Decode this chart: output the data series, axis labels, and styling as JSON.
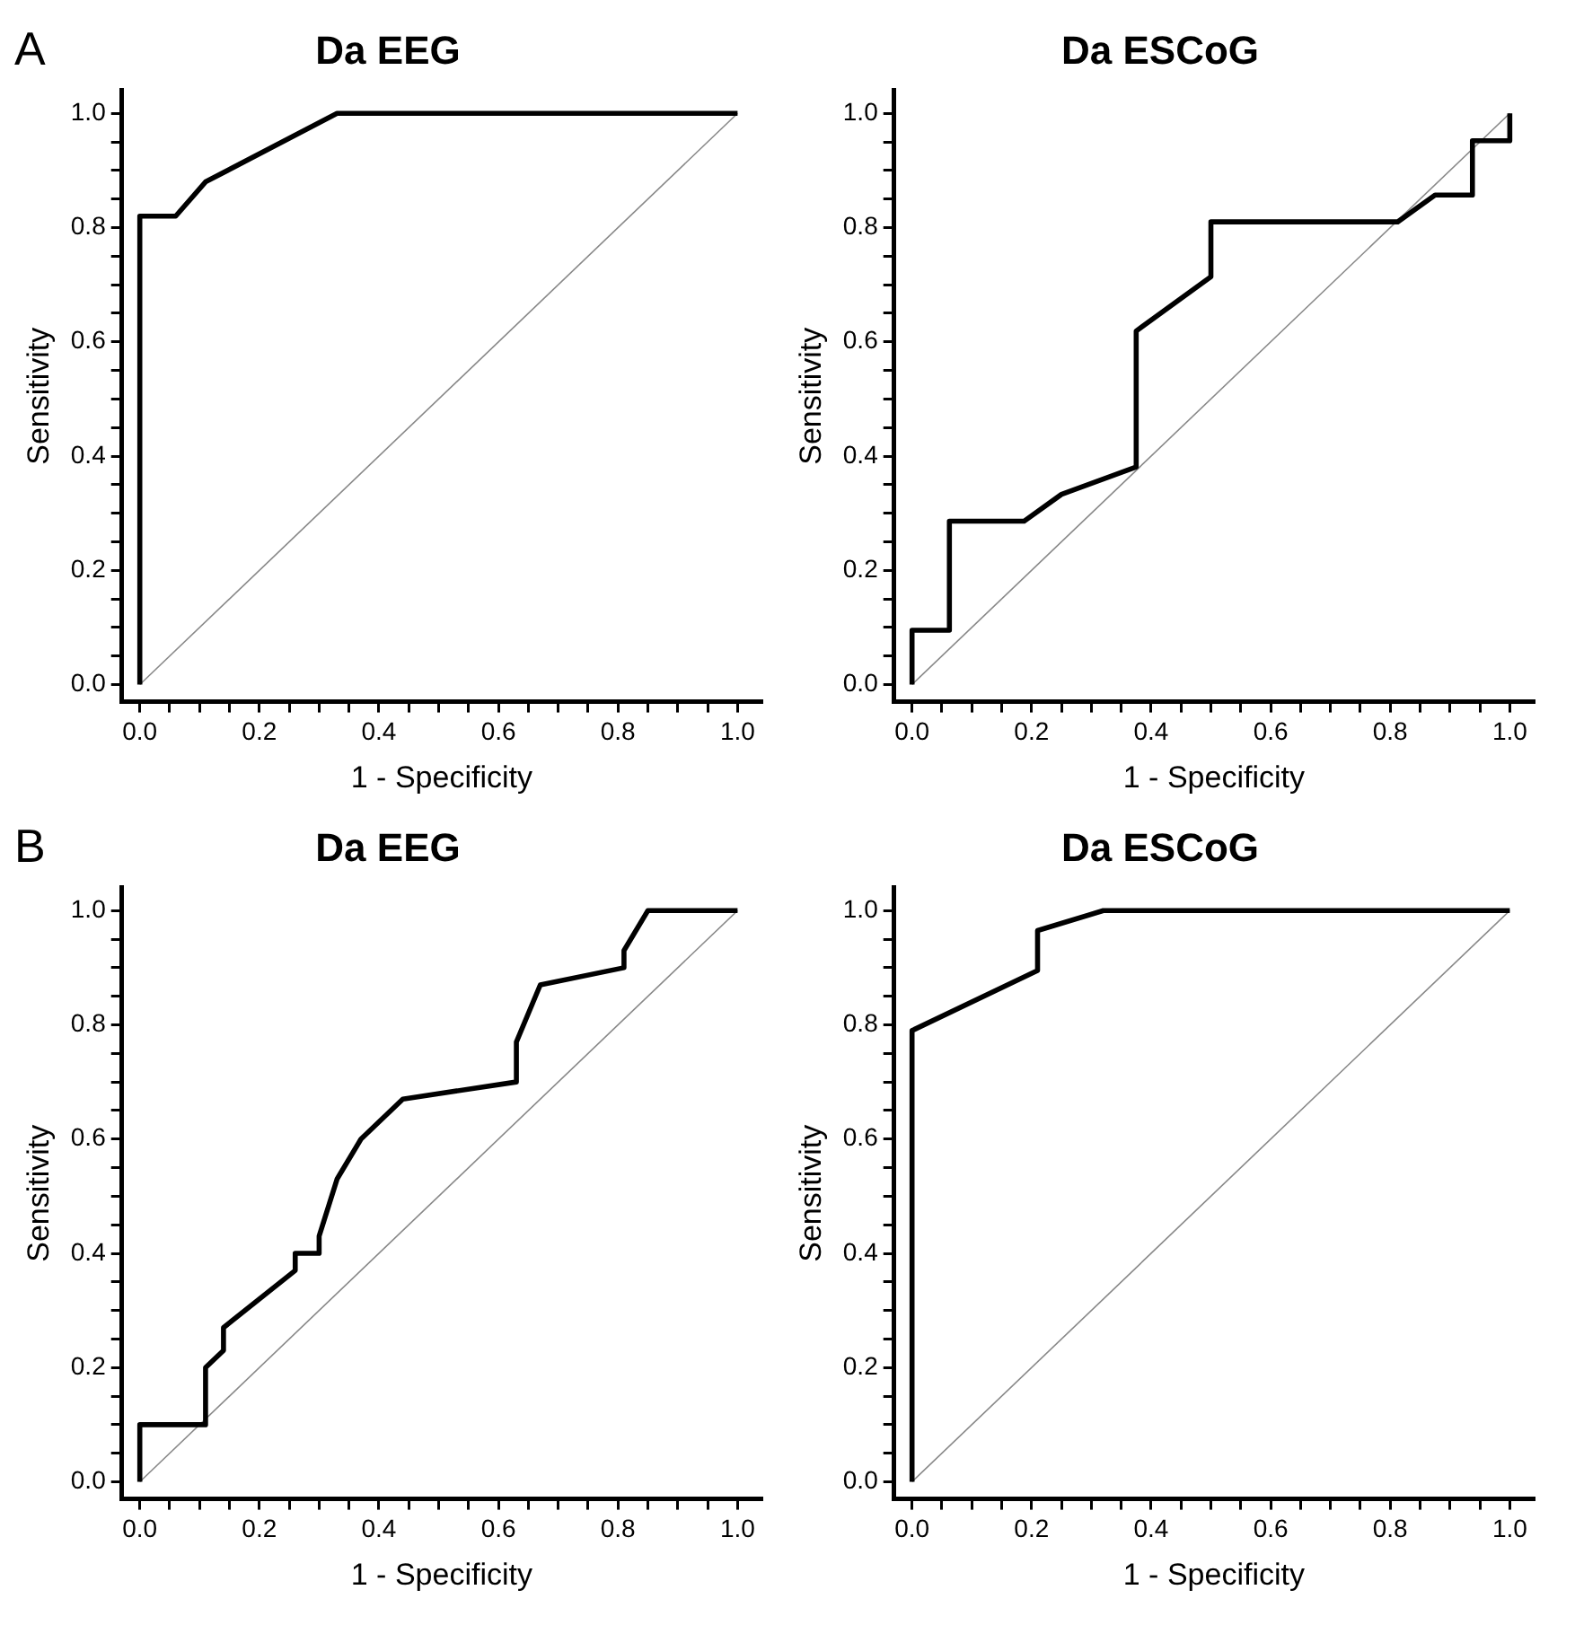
{
  "chart_data": [
    {
      "type": "line",
      "title": "Da EEG",
      "xlabel": "1 - Specificity",
      "ylabel": "Sensitivity",
      "annotations": [
        "A"
      ],
      "marker": "none",
      "grid": false,
      "legend": false,
      "xlim": [
        -0.03,
        1.04
      ],
      "ylim": [
        -0.03,
        1.04
      ],
      "xticks": [
        {
          "value": 0,
          "label": "0.0"
        },
        {
          "value": 0.05,
          "label": null
        },
        {
          "value": 0.1,
          "label": null
        },
        {
          "value": 0.15,
          "label": null
        },
        {
          "value": 0.2,
          "label": "0.2"
        },
        {
          "value": 0.25,
          "label": null
        },
        {
          "value": 0.3,
          "label": null
        },
        {
          "value": 0.35,
          "label": null
        },
        {
          "value": 0.4,
          "label": "0.4"
        },
        {
          "value": 0.45,
          "label": null
        },
        {
          "value": 0.5,
          "label": null
        },
        {
          "value": 0.55,
          "label": null
        },
        {
          "value": 0.6,
          "label": "0.6"
        },
        {
          "value": 0.65,
          "label": null
        },
        {
          "value": 0.7,
          "label": null
        },
        {
          "value": 0.75,
          "label": null
        },
        {
          "value": 0.8,
          "label": "0.8"
        },
        {
          "value": 0.85,
          "label": null
        },
        {
          "value": 0.9,
          "label": null
        },
        {
          "value": 0.95,
          "label": null
        },
        {
          "value": 1,
          "label": "1.0"
        }
      ],
      "yticks": [
        {
          "value": 0,
          "label": "0.0"
        },
        {
          "value": 0.05,
          "label": null
        },
        {
          "value": 0.1,
          "label": null
        },
        {
          "value": 0.15,
          "label": null
        },
        {
          "value": 0.2,
          "label": "0.2"
        },
        {
          "value": 0.25,
          "label": null
        },
        {
          "value": 0.3,
          "label": null
        },
        {
          "value": 0.35,
          "label": null
        },
        {
          "value": 0.4,
          "label": "0.4"
        },
        {
          "value": 0.45,
          "label": null
        },
        {
          "value": 0.5,
          "label": null
        },
        {
          "value": 0.55,
          "label": null
        },
        {
          "value": 0.6,
          "label": "0.6"
        },
        {
          "value": 0.65,
          "label": null
        },
        {
          "value": 0.7,
          "label": null
        },
        {
          "value": 0.75,
          "label": null
        },
        {
          "value": 0.8,
          "label": "0.8"
        },
        {
          "value": 0.85,
          "label": null
        },
        {
          "value": 0.9,
          "label": null
        },
        {
          "value": 0.95,
          "label": null
        },
        {
          "value": 1,
          "label": "1.0"
        }
      ],
      "series": [
        {
          "color": "#000000",
          "x": [
            0,
            0,
            0.06,
            0.11,
            0.33,
            1
          ],
          "values": [
            0,
            0.82,
            0.82,
            0.88,
            1,
            1
          ]
        },
        {
          "color": "#888888",
          "x": [
            0,
            1
          ],
          "values": [
            0,
            1
          ]
        }
      ]
    },
    {
      "type": "line",
      "title": "Da ESCoG",
      "xlabel": "1 - Specificity",
      "ylabel": "Sensitivity",
      "marker": "none",
      "grid": false,
      "legend": false,
      "xlim": [
        -0.03,
        1.04
      ],
      "ylim": [
        -0.03,
        1.04
      ],
      "xticks": [
        {
          "value": 0,
          "label": "0.0"
        },
        {
          "value": 0.05,
          "label": null
        },
        {
          "value": 0.1,
          "label": null
        },
        {
          "value": 0.15,
          "label": null
        },
        {
          "value": 0.2,
          "label": "0.2"
        },
        {
          "value": 0.25,
          "label": null
        },
        {
          "value": 0.3,
          "label": null
        },
        {
          "value": 0.35,
          "label": null
        },
        {
          "value": 0.4,
          "label": "0.4"
        },
        {
          "value": 0.45,
          "label": null
        },
        {
          "value": 0.5,
          "label": null
        },
        {
          "value": 0.55,
          "label": null
        },
        {
          "value": 0.6,
          "label": "0.6"
        },
        {
          "value": 0.65,
          "label": null
        },
        {
          "value": 0.7,
          "label": null
        },
        {
          "value": 0.75,
          "label": null
        },
        {
          "value": 0.8,
          "label": "0.8"
        },
        {
          "value": 0.85,
          "label": null
        },
        {
          "value": 0.9,
          "label": null
        },
        {
          "value": 0.95,
          "label": null
        },
        {
          "value": 1,
          "label": "1.0"
        }
      ],
      "yticks": [
        {
          "value": 0,
          "label": "0.0"
        },
        {
          "value": 0.05,
          "label": null
        },
        {
          "value": 0.1,
          "label": null
        },
        {
          "value": 0.15,
          "label": null
        },
        {
          "value": 0.2,
          "label": "0.2"
        },
        {
          "value": 0.25,
          "label": null
        },
        {
          "value": 0.3,
          "label": null
        },
        {
          "value": 0.35,
          "label": null
        },
        {
          "value": 0.4,
          "label": "0.4"
        },
        {
          "value": 0.45,
          "label": null
        },
        {
          "value": 0.5,
          "label": null
        },
        {
          "value": 0.55,
          "label": null
        },
        {
          "value": 0.6,
          "label": "0.6"
        },
        {
          "value": 0.65,
          "label": null
        },
        {
          "value": 0.7,
          "label": null
        },
        {
          "value": 0.75,
          "label": null
        },
        {
          "value": 0.8,
          "label": "0.8"
        },
        {
          "value": 0.85,
          "label": null
        },
        {
          "value": 0.9,
          "label": null
        },
        {
          "value": 0.95,
          "label": null
        },
        {
          "value": 1,
          "label": "1.0"
        }
      ],
      "series": [
        {
          "color": "#000000",
          "x": [
            0,
            0,
            0.0625,
            0.0625,
            0.1875,
            0.25,
            0.375,
            0.375,
            0.5,
            0.5,
            0.8125,
            0.875,
            0.9375,
            0.9375,
            1,
            1
          ],
          "values": [
            0,
            0.095,
            0.095,
            0.286,
            0.286,
            0.333,
            0.381,
            0.619,
            0.714,
            0.81,
            0.81,
            0.857,
            0.857,
            0.952,
            0.952,
            1
          ]
        },
        {
          "color": "#888888",
          "x": [
            0,
            1
          ],
          "values": [
            0,
            1
          ]
        }
      ]
    },
    {
      "type": "line",
      "title": "Da EEG",
      "xlabel": "1 - Specificity",
      "ylabel": "Sensitivity",
      "annotations": [
        "B"
      ],
      "marker": "none",
      "grid": false,
      "legend": false,
      "xlim": [
        -0.03,
        1.04
      ],
      "ylim": [
        -0.03,
        1.04
      ],
      "xticks": [
        {
          "value": 0,
          "label": "0.0"
        },
        {
          "value": 0.05,
          "label": null
        },
        {
          "value": 0.1,
          "label": null
        },
        {
          "value": 0.15,
          "label": null
        },
        {
          "value": 0.2,
          "label": "0.2"
        },
        {
          "value": 0.25,
          "label": null
        },
        {
          "value": 0.3,
          "label": null
        },
        {
          "value": 0.35,
          "label": null
        },
        {
          "value": 0.4,
          "label": "0.4"
        },
        {
          "value": 0.45,
          "label": null
        },
        {
          "value": 0.5,
          "label": null
        },
        {
          "value": 0.55,
          "label": null
        },
        {
          "value": 0.6,
          "label": "0.6"
        },
        {
          "value": 0.65,
          "label": null
        },
        {
          "value": 0.7,
          "label": null
        },
        {
          "value": 0.75,
          "label": null
        },
        {
          "value": 0.8,
          "label": "0.8"
        },
        {
          "value": 0.85,
          "label": null
        },
        {
          "value": 0.9,
          "label": null
        },
        {
          "value": 0.95,
          "label": null
        },
        {
          "value": 1,
          "label": "1.0"
        }
      ],
      "yticks": [
        {
          "value": 0,
          "label": "0.0"
        },
        {
          "value": 0.05,
          "label": null
        },
        {
          "value": 0.1,
          "label": null
        },
        {
          "value": 0.15,
          "label": null
        },
        {
          "value": 0.2,
          "label": "0.2"
        },
        {
          "value": 0.25,
          "label": null
        },
        {
          "value": 0.3,
          "label": null
        },
        {
          "value": 0.35,
          "label": null
        },
        {
          "value": 0.4,
          "label": "0.4"
        },
        {
          "value": 0.45,
          "label": null
        },
        {
          "value": 0.5,
          "label": null
        },
        {
          "value": 0.55,
          "label": null
        },
        {
          "value": 0.6,
          "label": "0.6"
        },
        {
          "value": 0.65,
          "label": null
        },
        {
          "value": 0.7,
          "label": null
        },
        {
          "value": 0.75,
          "label": null
        },
        {
          "value": 0.8,
          "label": "0.8"
        },
        {
          "value": 0.85,
          "label": null
        },
        {
          "value": 0.9,
          "label": null
        },
        {
          "value": 0.95,
          "label": null
        },
        {
          "value": 1,
          "label": "1.0"
        }
      ],
      "series": [
        {
          "color": "#000000",
          "x": [
            0,
            0,
            0.11,
            0.11,
            0.14,
            0.14,
            0.26,
            0.26,
            0.3,
            0.3,
            0.33,
            0.37,
            0.44,
            0.63,
            0.63,
            0.67,
            0.81,
            0.81,
            0.85,
            1
          ],
          "values": [
            0,
            0.1,
            0.1,
            0.2,
            0.23,
            0.27,
            0.37,
            0.4,
            0.4,
            0.43,
            0.53,
            0.6,
            0.67,
            0.7,
            0.77,
            0.87,
            0.9,
            0.93,
            1,
            1
          ]
        },
        {
          "color": "#888888",
          "x": [
            0,
            1
          ],
          "values": [
            0,
            1
          ]
        }
      ]
    },
    {
      "type": "line",
      "title": "Da ESCoG",
      "xlabel": "1 - Specificity",
      "ylabel": "Sensitivity",
      "marker": "none",
      "grid": false,
      "legend": false,
      "xlim": [
        -0.03,
        1.04
      ],
      "ylim": [
        -0.03,
        1.04
      ],
      "xticks": [
        {
          "value": 0,
          "label": "0.0"
        },
        {
          "value": 0.05,
          "label": null
        },
        {
          "value": 0.1,
          "label": null
        },
        {
          "value": 0.15,
          "label": null
        },
        {
          "value": 0.2,
          "label": "0.2"
        },
        {
          "value": 0.25,
          "label": null
        },
        {
          "value": 0.3,
          "label": null
        },
        {
          "value": 0.35,
          "label": null
        },
        {
          "value": 0.4,
          "label": "0.4"
        },
        {
          "value": 0.45,
          "label": null
        },
        {
          "value": 0.5,
          "label": null
        },
        {
          "value": 0.55,
          "label": null
        },
        {
          "value": 0.6,
          "label": "0.6"
        },
        {
          "value": 0.65,
          "label": null
        },
        {
          "value": 0.7,
          "label": null
        },
        {
          "value": 0.75,
          "label": null
        },
        {
          "value": 0.8,
          "label": "0.8"
        },
        {
          "value": 0.85,
          "label": null
        },
        {
          "value": 0.9,
          "label": null
        },
        {
          "value": 0.95,
          "label": null
        },
        {
          "value": 1,
          "label": "1.0"
        }
      ],
      "yticks": [
        {
          "value": 0,
          "label": "0.0"
        },
        {
          "value": 0.05,
          "label": null
        },
        {
          "value": 0.1,
          "label": null
        },
        {
          "value": 0.15,
          "label": null
        },
        {
          "value": 0.2,
          "label": "0.2"
        },
        {
          "value": 0.25,
          "label": null
        },
        {
          "value": 0.3,
          "label": null
        },
        {
          "value": 0.35,
          "label": null
        },
        {
          "value": 0.4,
          "label": "0.4"
        },
        {
          "value": 0.45,
          "label": null
        },
        {
          "value": 0.5,
          "label": null
        },
        {
          "value": 0.55,
          "label": null
        },
        {
          "value": 0.6,
          "label": "0.6"
        },
        {
          "value": 0.65,
          "label": null
        },
        {
          "value": 0.7,
          "label": null
        },
        {
          "value": 0.75,
          "label": null
        },
        {
          "value": 0.8,
          "label": "0.8"
        },
        {
          "value": 0.85,
          "label": null
        },
        {
          "value": 0.9,
          "label": null
        },
        {
          "value": 0.95,
          "label": null
        },
        {
          "value": 1,
          "label": "1.0"
        }
      ],
      "series": [
        {
          "color": "#000000",
          "x": [
            0,
            0,
            0.21,
            0.21,
            0.32,
            1
          ],
          "values": [
            0,
            0.79,
            0.895,
            0.965,
            1,
            1
          ]
        },
        {
          "color": "#888888",
          "x": [
            0,
            1
          ],
          "values": [
            0,
            1
          ]
        }
      ]
    }
  ]
}
